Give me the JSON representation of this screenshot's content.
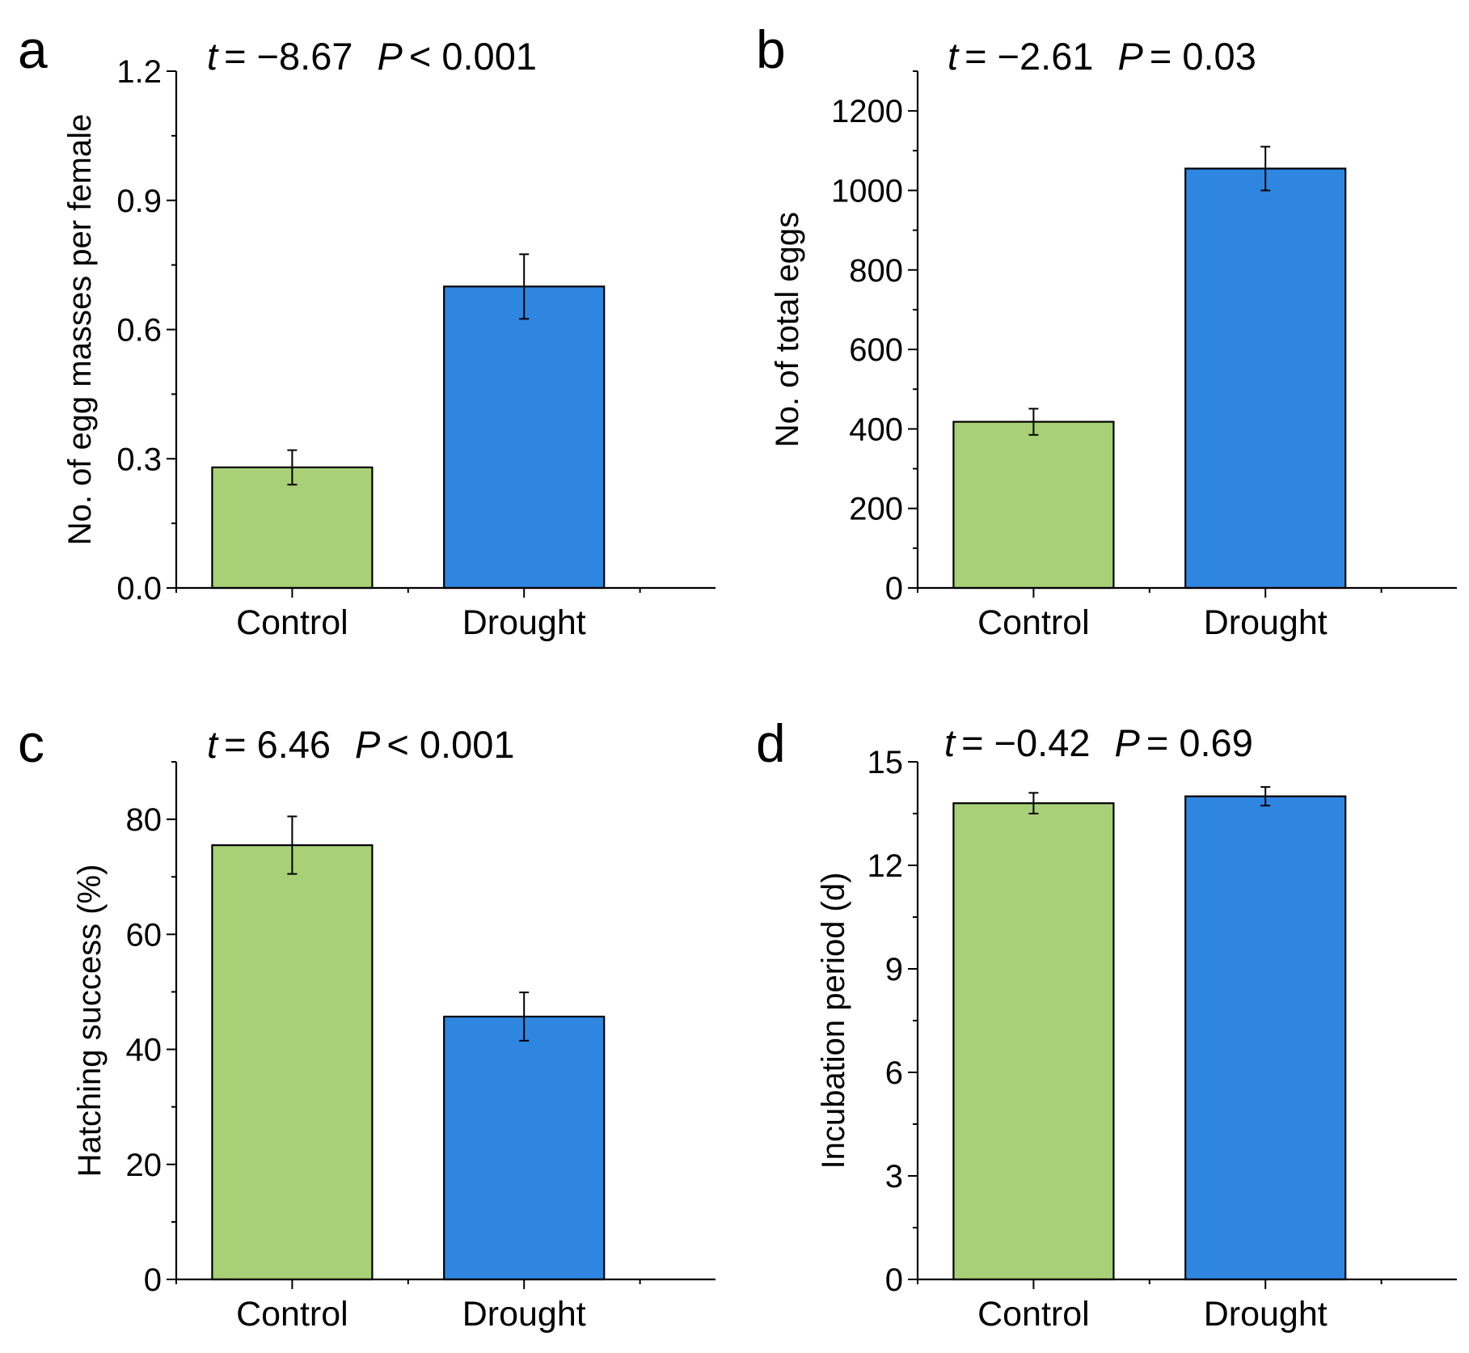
{
  "chart_data": [
    {
      "type": "bar",
      "panel": "a",
      "stat": {
        "t_symbol": "t",
        "t_value": "= −8.67",
        "p_symbol": "P",
        "p_value": "< 0.001"
      },
      "categories": [
        "Control",
        "Drought"
      ],
      "values": [
        0.28,
        0.7
      ],
      "errors": [
        0.04,
        0.075
      ],
      "colors": [
        "#a8d076",
        "#2e86e0"
      ],
      "ylabel": "No. of egg masses per female",
      "xlabel": "",
      "ylim": [
        0,
        1.2
      ],
      "major_ticks": [
        0,
        0.3,
        0.6,
        0.9,
        1.2
      ],
      "tick_labels": [
        "0.0",
        "0.3",
        "0.6",
        "0.9",
        "1.2"
      ],
      "grid": false
    },
    {
      "type": "bar",
      "panel": "b",
      "stat": {
        "t_symbol": "t",
        "t_value": "= −2.61",
        "p_symbol": "P",
        "p_value": "= 0.03"
      },
      "categories": [
        "Control",
        "Drought"
      ],
      "values": [
        418,
        1055
      ],
      "errors": [
        33,
        55
      ],
      "colors": [
        "#a8d076",
        "#2e86e0"
      ],
      "ylabel": "No. of total eggs",
      "xlabel": "",
      "ylim": [
        0,
        1300
      ],
      "major_ticks": [
        0,
        200,
        400,
        600,
        800,
        1000,
        1200
      ],
      "tick_labels": [
        "0",
        "200",
        "400",
        "600",
        "800",
        "1000",
        "1200"
      ],
      "grid": false
    },
    {
      "type": "bar",
      "panel": "c",
      "stat": {
        "t_symbol": "t",
        "t_value": "= 6.46",
        "p_symbol": "P",
        "p_value": "< 0.001"
      },
      "categories": [
        "Control",
        "Drought"
      ],
      "values": [
        75.5,
        45.7
      ],
      "errors": [
        5.0,
        4.2
      ],
      "colors": [
        "#a8d076",
        "#2e86e0"
      ],
      "ylabel": "Hatching success (%)",
      "xlabel": "",
      "ylim": [
        0,
        90
      ],
      "major_ticks": [
        0,
        20,
        40,
        60,
        80
      ],
      "tick_labels": [
        "0",
        "20",
        "40",
        "60",
        "80"
      ],
      "grid": false
    },
    {
      "type": "bar",
      "panel": "d",
      "stat": {
        "t_symbol": "t",
        "t_value": "= −0.42",
        "p_symbol": "P",
        "p_value": "= 0.69"
      },
      "categories": [
        "Control",
        "Drought"
      ],
      "values": [
        13.8,
        14.0
      ],
      "errors": [
        0.3,
        0.27
      ],
      "colors": [
        "#a8d076",
        "#2e86e0"
      ],
      "ylabel": "Incubation period (d)",
      "xlabel": "",
      "ylim": [
        0,
        15
      ],
      "major_ticks": [
        0,
        3,
        6,
        9,
        12,
        15
      ],
      "tick_labels": [
        "0",
        "3",
        "6",
        "9",
        "12",
        "15"
      ],
      "grid": false
    }
  ]
}
